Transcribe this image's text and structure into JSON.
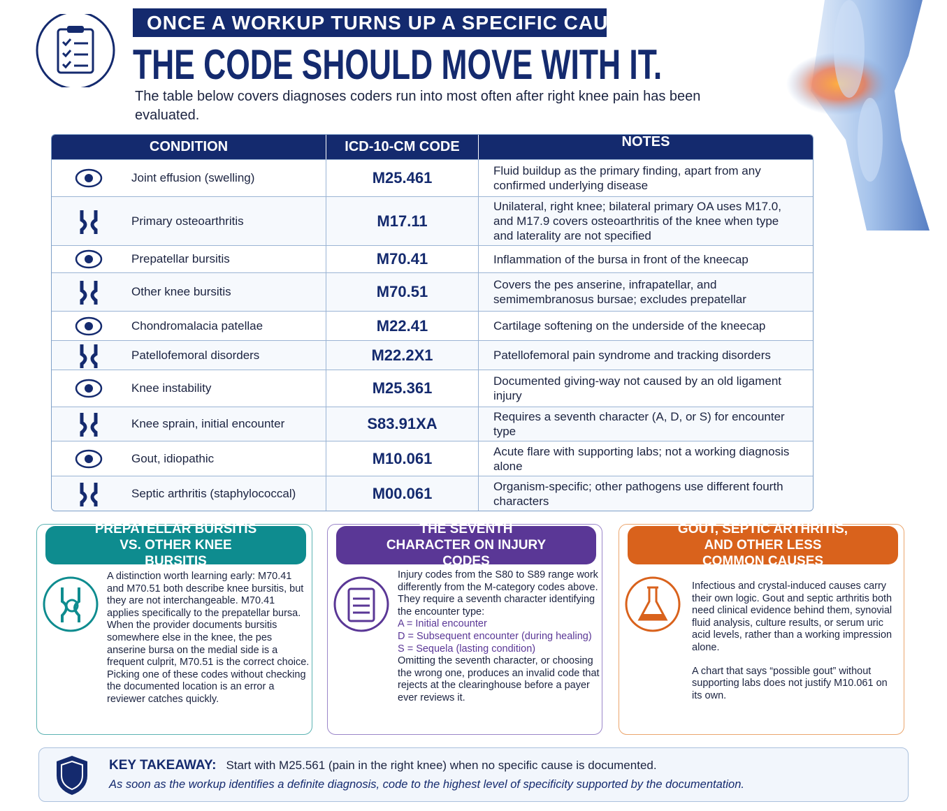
{
  "header": {
    "kicker": "ONCE A WORKUP TURNS UP A SPECIFIC CAUSE,",
    "title": "THE CODE SHOULD MOVE WITH IT.",
    "intro": "The table below covers diagnoses coders run into most often after right knee pain has been evaluated."
  },
  "table": {
    "columns": [
      "CONDITION",
      "ICD-10-CM CODE",
      "NOTES"
    ],
    "rows": [
      [
        "Joint effusion (swelling)",
        "M25.461",
        "Fluid buildup as the primary finding, apart from any confirmed underlying disease"
      ],
      [
        "Primary osteoarthritis",
        "M17.11",
        "Unilateral, right knee; bilateral primary OA uses M17.0, and M17.9 covers osteoarthritis of the knee when type and laterality are not specified"
      ],
      [
        "Prepatellar bursitis",
        "M70.41",
        "Inflammation of the bursa in front of the kneecap"
      ],
      [
        "Other knee bursitis",
        "M70.51",
        "Covers the pes anserine, infrapatellar, and semimembranosus bursae; excludes prepatellar"
      ],
      [
        "Chondromalacia patellae",
        "M22.41",
        "Cartilage softening on the underside of the kneecap"
      ],
      [
        "Patellofemoral disorders",
        "M22.2X1",
        "Patellofemoral pain syndrome and tracking disorders"
      ],
      [
        "Knee instability",
        "M25.361",
        "Documented giving-way not caused by an old ligament injury"
      ],
      [
        "Knee sprain, initial encounter",
        "S83.91XA",
        "Requires a seventh character (A, D, or S) for encounter type"
      ],
      [
        "Gout, idiopathic",
        "M10.061",
        "Acute flare with supporting labs; not a working diagnosis alone"
      ],
      [
        "Septic arthritis (staphylococcal)",
        "M00.061",
        "Organism-specific; other pathogens use different fourth characters"
      ]
    ]
  },
  "panels": [
    {
      "title": "PREPATELLAR BURSITIS VS. OTHER KNEE BURSITIS",
      "paragraphs": [
        "A distinction worth learning early: M70.41 and M70.51 both describe knee bursitis, but they are not interchangeable. M70.41 applies specifically to the prepatellar bursa. When the provider documents bursitis somewhere else in the knee, the pes anserine bursa on the medial side is a frequent culprit, M70.51 is the correct choice. Picking one of these codes without checking the documented location is an error a reviewer catches quickly."
      ]
    },
    {
      "title": "THE SEVENTH CHARACTER ON INJURY CODES",
      "paragraphs": [
        "Injury codes from the S80 to S89 range work differently from the M-category codes above. They require a seventh character identifying the encounter type:"
      ],
      "list": [
        "A = Initial encounter",
        "D = Subsequent encounter (during healing)",
        "S = Sequela (lasting condition)"
      ],
      "closing": "Omitting the seventh character, or choosing the wrong one, produces an invalid code that rejects at the clearinghouse before a payer ever reviews it."
    },
    {
      "title": "GOUT, SEPTIC ARTHRITIS, AND OTHER LESS COMMON CAUSES",
      "paragraphs": [
        "Infectious and crystal-induced causes carry their own logic. Gout and septic arthritis both need clinical evidence behind them, synovial fluid analysis, culture results, or serum uric acid levels, rather than a working impression alone.",
        "A chart that says “possible gout” without supporting labs does not justify M10.061 on its own."
      ]
    }
  ],
  "takeaway": {
    "label": "KEY TAKEAWAY:",
    "text": "Start with M25.561 (pain in the right knee) when no specific cause is documented.",
    "detail": "As soon as the workup identifies a definite diagnosis, code to the highest level of specificity supported by the documentation."
  }
}
